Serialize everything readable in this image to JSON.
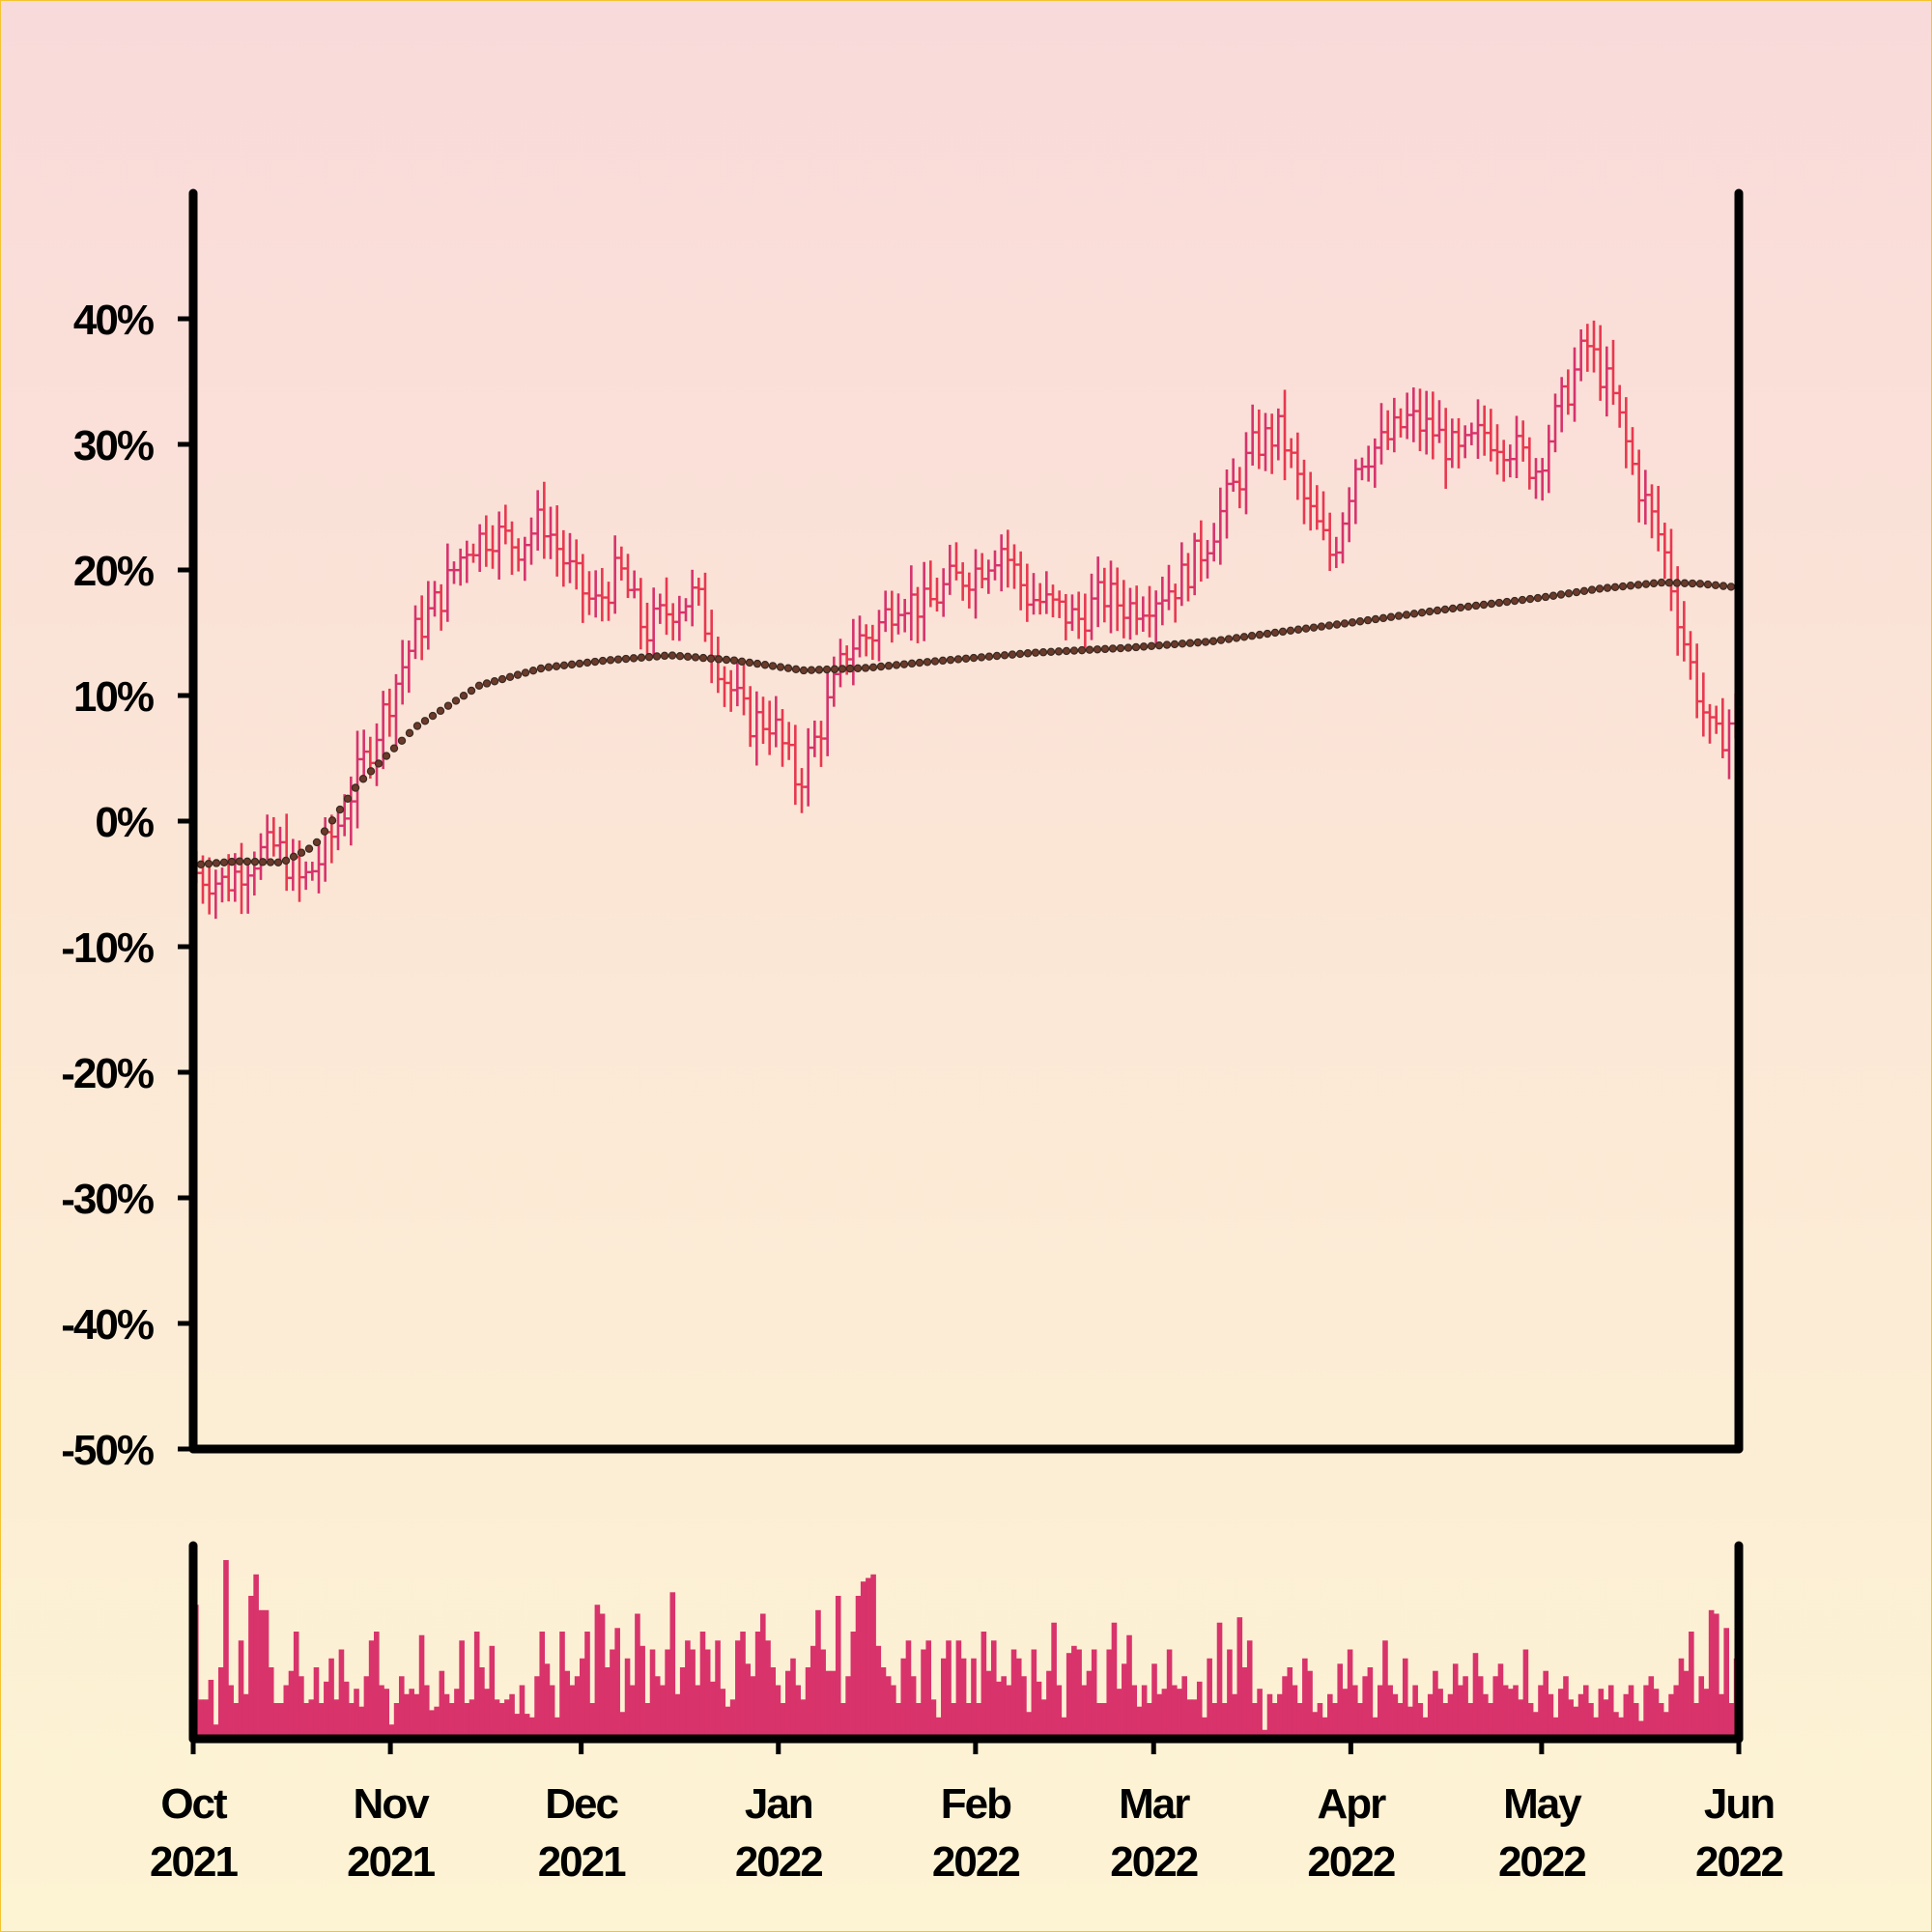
{
  "colors": {
    "bar": "#e8384f",
    "bar_alt": "#d6336c",
    "volume": "#d9336b",
    "ma": "#3a2a22",
    "axis": "#000000"
  },
  "chart_data": [
    {
      "type": "ohlc",
      "title": "",
      "xlabel": "",
      "ylabel": "",
      "ylim": [
        -50,
        50
      ],
      "y_ticks": [
        -50,
        -40,
        -30,
        -20,
        -10,
        0,
        10,
        20,
        30,
        40
      ],
      "y_tick_labels": [
        "-50%",
        "-40%",
        "-30%",
        "-20%",
        "-10%",
        "0%",
        "10%",
        "20%",
        "30%",
        "40%"
      ],
      "x_range": [
        "2021-10-01",
        "2022-06-01"
      ],
      "grid": false,
      "series": [
        {
          "kind": "close_percent_change",
          "points": [
            [
              "2021-10-01",
              -4
            ],
            [
              "2021-10-06",
              -5
            ],
            [
              "2021-10-10",
              -3
            ],
            [
              "2021-10-14",
              -2
            ],
            [
              "2021-10-18",
              -5
            ],
            [
              "2021-10-21",
              -3
            ],
            [
              "2021-10-24",
              0
            ],
            [
              "2021-10-28",
              5
            ],
            [
              "2021-11-01",
              10
            ],
            [
              "2021-11-05",
              15
            ],
            [
              "2021-11-09",
              18
            ],
            [
              "2021-11-13",
              22
            ],
            [
              "2021-11-17",
              23
            ],
            [
              "2021-11-21",
              22
            ],
            [
              "2021-11-25",
              24
            ],
            [
              "2021-11-29",
              20
            ],
            [
              "2021-12-03",
              17
            ],
            [
              "2021-12-07",
              20
            ],
            [
              "2021-12-11",
              15
            ],
            [
              "2021-12-15",
              17
            ],
            [
              "2021-12-19",
              18
            ],
            [
              "2021-12-23",
              12
            ],
            [
              "2021-12-27",
              8
            ],
            [
              "2021-12-31",
              8
            ],
            [
              "2022-01-04",
              3
            ],
            [
              "2022-01-08",
              8
            ],
            [
              "2022-01-12",
              14
            ],
            [
              "2022-01-16",
              15
            ],
            [
              "2022-01-20",
              18
            ],
            [
              "2022-01-24",
              17
            ],
            [
              "2022-01-28",
              19
            ],
            [
              "2022-02-01",
              20
            ],
            [
              "2022-02-05",
              22
            ],
            [
              "2022-02-09",
              18
            ],
            [
              "2022-02-13",
              17
            ],
            [
              "2022-02-17",
              16
            ],
            [
              "2022-02-21",
              18
            ],
            [
              "2022-02-25",
              17
            ],
            [
              "2022-03-01",
              18
            ],
            [
              "2022-03-05",
              19
            ],
            [
              "2022-03-09",
              22
            ],
            [
              "2022-03-13",
              26
            ],
            [
              "2022-03-17",
              30
            ],
            [
              "2022-03-21",
              31
            ],
            [
              "2022-03-25",
              25
            ],
            [
              "2022-03-29",
              21
            ],
            [
              "2022-04-02",
              29
            ],
            [
              "2022-04-06",
              30
            ],
            [
              "2022-04-10",
              32
            ],
            [
              "2022-04-14",
              31
            ],
            [
              "2022-04-18",
              29
            ],
            [
              "2022-04-22",
              31
            ],
            [
              "2022-04-26",
              30
            ],
            [
              "2022-04-30",
              28
            ],
            [
              "2022-05-04",
              33
            ],
            [
              "2022-05-08",
              38
            ],
            [
              "2022-05-12",
              34
            ],
            [
              "2022-05-16",
              27
            ],
            [
              "2022-05-20",
              22
            ],
            [
              "2022-05-24",
              13
            ],
            [
              "2022-05-28",
              6
            ],
            [
              "2022-06-01",
              9
            ]
          ]
        },
        {
          "kind": "moving_average",
          "points": [
            [
              "2021-10-01",
              -3.5
            ],
            [
              "2021-10-08",
              -3.2
            ],
            [
              "2021-10-15",
              -3.3
            ],
            [
              "2021-10-20",
              -2
            ],
            [
              "2021-10-27",
              3
            ],
            [
              "2021-11-05",
              7.5
            ],
            [
              "2021-11-15",
              10.8
            ],
            [
              "2021-11-25",
              12.2
            ],
            [
              "2021-12-05",
              12.8
            ],
            [
              "2021-12-15",
              13.2
            ],
            [
              "2021-12-25",
              12.8
            ],
            [
              "2022-01-05",
              12
            ],
            [
              "2022-01-15",
              12.2
            ],
            [
              "2022-01-25",
              12.7
            ],
            [
              "2022-02-10",
              13.4
            ],
            [
              "2022-02-25",
              13.8
            ],
            [
              "2022-03-10",
              14.3
            ],
            [
              "2022-03-20",
              15
            ],
            [
              "2022-04-01",
              15.8
            ],
            [
              "2022-04-15",
              16.8
            ],
            [
              "2022-05-01",
              17.8
            ],
            [
              "2022-05-10",
              18.5
            ],
            [
              "2022-05-20",
              19.0
            ],
            [
              "2022-05-26",
              18.9
            ],
            [
              "2022-06-01",
              18.6
            ]
          ]
        }
      ]
    },
    {
      "type": "bar",
      "title": "",
      "xlabel": "",
      "ylabel": "",
      "x_ticks": [
        "2021-10-01",
        "2021-11-01",
        "2021-12-01",
        "2022-01-01",
        "2022-02-01",
        "2022-03-01",
        "2022-04-01",
        "2022-05-01",
        "2022-06-01"
      ],
      "x_tick_labels": [
        [
          "Oct",
          "2021"
        ],
        [
          "Nov",
          "2021"
        ],
        [
          "Dec",
          "2021"
        ],
        [
          "Jan",
          "2022"
        ],
        [
          "Feb",
          "2022"
        ],
        [
          "Mar",
          "2022"
        ],
        [
          "Apr",
          "2022"
        ],
        [
          "May",
          "2022"
        ],
        [
          "Jun",
          "2022"
        ]
      ],
      "series": [
        {
          "kind": "volume_relative",
          "values": [
            0.75,
            0.22,
            0.22,
            0.33,
            0.08,
            0.4,
            1.0,
            0.3,
            0.2,
            0.55,
            0.25,
            0.8,
            0.92,
            0.72,
            0.72,
            0.4,
            0.2,
            0.2,
            0.3,
            0.38,
            0.6,
            0.35,
            0.2,
            0.22,
            0.4,
            0.2,
            0.32,
            0.45,
            0.22,
            0.5,
            0.32,
            0.2,
            0.28,
            0.18,
            0.35,
            0.55,
            0.6,
            0.3,
            0.28,
            0.08,
            0.2,
            0.35,
            0.25,
            0.28,
            0.25,
            0.58,
            0.3,
            0.16,
            0.18,
            0.38,
            0.25,
            0.2,
            0.28,
            0.55,
            0.2,
            0.22,
            0.6,
            0.4,
            0.28,
            0.52,
            0.22,
            0.2,
            0.22,
            0.25,
            0.14,
            0.3,
            0.14,
            0.12,
            0.35,
            0.6,
            0.42,
            0.3,
            0.12,
            0.6,
            0.38,
            0.3,
            0.35,
            0.45,
            0.6,
            0.2,
            0.75,
            0.7,
            0.4,
            0.5,
            0.62,
            0.15,
            0.45,
            0.3,
            0.7,
            0.52,
            0.2,
            0.5,
            0.35,
            0.3,
            0.5,
            0.82,
            0.25,
            0.4,
            0.55,
            0.5,
            0.3,
            0.6,
            0.5,
            0.32,
            0.55,
            0.28,
            0.18,
            0.22,
            0.55,
            0.6,
            0.42,
            0.35,
            0.6,
            0.7,
            0.55,
            0.4,
            0.3,
            0.2,
            0.38,
            0.45,
            0.3,
            0.22,
            0.4,
            0.52,
            0.72,
            0.5,
            0.38,
            0.38,
            0.8,
            0.2,
            0.35,
            0.6,
            0.8,
            0.88,
            0.9,
            0.92,
            0.52,
            0.4,
            0.35,
            0.3,
            0.2,
            0.45,
            0.55,
            0.35,
            0.2,
            0.5,
            0.55,
            0.22,
            0.12,
            0.45,
            0.55,
            0.2,
            0.55,
            0.45,
            0.2,
            0.45,
            0.2,
            0.6,
            0.38,
            0.55,
            0.32,
            0.35,
            0.3,
            0.5,
            0.45,
            0.35,
            0.15,
            0.5,
            0.32,
            0.22,
            0.38,
            0.65,
            0.3,
            0.12,
            0.48,
            0.52,
            0.5,
            0.3,
            0.38,
            0.5,
            0.2,
            0.2,
            0.5,
            0.65,
            0.28,
            0.42,
            0.58,
            0.3,
            0.18,
            0.3,
            0.2,
            0.42,
            0.25,
            0.28,
            0.5,
            0.3,
            0.28,
            0.35,
            0.22,
            0.22,
            0.32,
            0.12,
            0.45,
            0.2,
            0.65,
            0.2,
            0.5,
            0.25,
            0.68,
            0.4,
            0.55,
            0.2,
            0.28,
            0.05,
            0.25,
            0.2,
            0.25,
            0.35,
            0.4,
            0.3,
            0.2,
            0.45,
            0.38,
            0.15,
            0.2,
            0.12,
            0.25,
            0.2,
            0.42,
            0.28,
            0.5,
            0.3,
            0.2,
            0.35,
            0.4,
            0.12,
            0.3,
            0.55,
            0.3,
            0.25,
            0.2,
            0.45,
            0.18,
            0.3,
            0.2,
            0.12,
            0.25,
            0.38,
            0.28,
            0.2,
            0.25,
            0.42,
            0.3,
            0.35,
            0.2,
            0.48,
            0.35,
            0.25,
            0.2,
            0.35,
            0.42,
            0.3,
            0.28,
            0.3,
            0.22,
            0.5,
            0.2,
            0.15,
            0.3,
            0.38,
            0.25,
            0.12,
            0.28,
            0.35,
            0.22,
            0.18,
            0.25,
            0.3,
            0.2,
            0.12,
            0.28,
            0.22,
            0.3,
            0.15,
            0.12,
            0.25,
            0.3,
            0.2,
            0.1,
            0.3,
            0.35,
            0.28,
            0.2,
            0.15,
            0.25,
            0.3,
            0.45,
            0.38,
            0.6,
            0.2,
            0.35,
            0.28,
            0.72,
            0.7,
            0.25,
            0.62,
            0.2,
            0.45
          ]
        }
      ]
    }
  ]
}
